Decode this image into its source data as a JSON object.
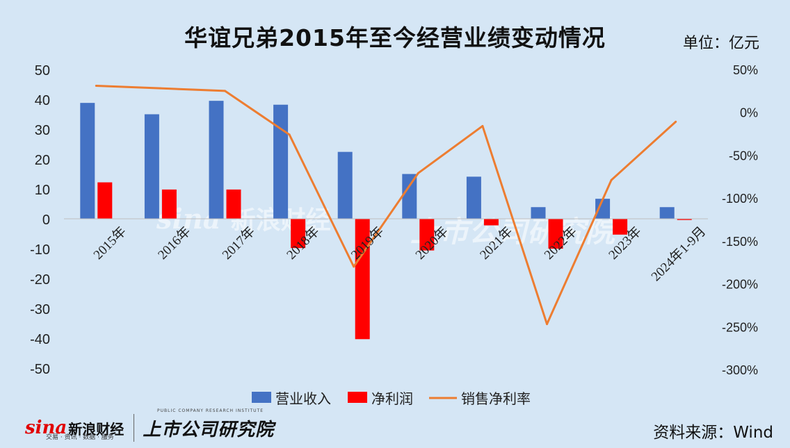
{
  "title": "华谊兄弟2015年至今经营业绩变动情况",
  "unit_label": "单位：亿元",
  "source_label": "资料来源：Wind",
  "watermark": {
    "sina_mark": "sina",
    "sina_cn": "新浪财经",
    "sina_sub": "交易 · 资讯 · 数据 · 服务",
    "research_cn": "上市公司研究院",
    "research_en": "PUBLIC COMPANY RESEARCH INSTITUTE"
  },
  "colors": {
    "revenue": "#4472c4",
    "profit": "#ff0000",
    "margin": "#ed7d31",
    "background": "#d5e6f5"
  },
  "chart_data": {
    "type": "bar",
    "categories": [
      "2015年",
      "2016年",
      "2017年",
      "2018年",
      "2019年",
      "2020年",
      "2021年",
      "2022年",
      "2023年",
      "2024年1-9月"
    ],
    "series": [
      {
        "name": "营业收入",
        "type": "bar",
        "axis": "left",
        "values": [
          38.8,
          35.0,
          39.5,
          38.2,
          22.4,
          15.0,
          14.1,
          3.9,
          6.7,
          3.9
        ]
      },
      {
        "name": "净利润",
        "type": "bar",
        "axis": "left",
        "values": [
          12.2,
          9.8,
          9.8,
          -9.8,
          -40.3,
          -10.6,
          -2.2,
          -10.0,
          -5.3,
          -0.4
        ]
      },
      {
        "name": "销售净利率",
        "type": "line",
        "axis": "right",
        "values": [
          31,
          28,
          25,
          -26,
          -180,
          -71,
          -16,
          -247,
          -79,
          -11
        ]
      }
    ],
    "y_left": {
      "min": -50,
      "max": 50,
      "ticks": [
        "50",
        "40",
        "30",
        "20",
        "10",
        "0",
        "-10",
        "-20",
        "-30",
        "-40",
        "-50"
      ]
    },
    "y_right": {
      "min": -300,
      "max": 50,
      "ticks": [
        "50%",
        "0%",
        "-50%",
        "-100%",
        "-150%",
        "-200%",
        "-250%",
        "-300%"
      ]
    },
    "legend_position": "bottom",
    "grid": false
  }
}
